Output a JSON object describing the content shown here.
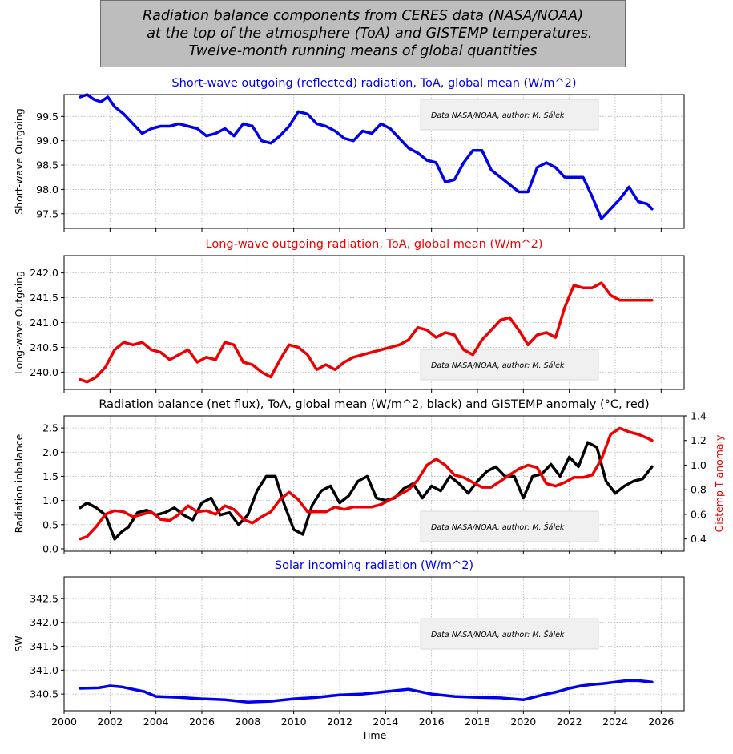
{
  "suptitle": {
    "line1": "Radiation balance components from CERES data (NASA/NOAA)",
    "line2": "   at the top of the atmosphere (ToA) and GISTEMP temperatures.",
    "line3": "Twelve-month running means of global quantities"
  },
  "colors": {
    "blue": "#0000ee",
    "red": "#ee0000",
    "black": "#000000",
    "grid": "#b0b0b0",
    "note_bg": "#f0f0f0"
  },
  "chart_data": [
    {
      "type": "line",
      "title": "Short-wave outgoing (reflected) radiation, ToA, global mean (W/m^2)",
      "ylabel": "Short-wave Outgoing",
      "xlim": [
        2000,
        2027
      ],
      "ylim": [
        97.2,
        99.95
      ],
      "yticks": [
        97.5,
        98.0,
        98.5,
        99.0,
        99.5
      ],
      "ytick_labels": [
        "97.5",
        "98.0",
        "98.5",
        "99.0",
        "99.5"
      ],
      "grid": true,
      "annotation": "Data NASA/NOAA, author: M. Šálek",
      "series": [
        {
          "color": "#0000ee",
          "x": [
            2000.7,
            2001.0,
            2001.3,
            2001.6,
            2001.9,
            2002.2,
            2002.6,
            2003.0,
            2003.4,
            2003.8,
            2004.2,
            2004.6,
            2005.0,
            2005.4,
            2005.8,
            2006.2,
            2006.6,
            2007.0,
            2007.4,
            2007.8,
            2008.2,
            2008.6,
            2009.0,
            2009.4,
            2009.8,
            2010.2,
            2010.6,
            2011.0,
            2011.4,
            2011.8,
            2012.2,
            2012.6,
            2013.0,
            2013.4,
            2013.8,
            2014.2,
            2014.6,
            2015.0,
            2015.4,
            2015.8,
            2016.2,
            2016.6,
            2017.0,
            2017.4,
            2017.8,
            2018.2,
            2018.6,
            2019.0,
            2019.4,
            2019.8,
            2020.2,
            2020.6,
            2021.0,
            2021.4,
            2021.8,
            2022.2,
            2022.6,
            2023.0,
            2023.4,
            2023.8,
            2024.2,
            2024.6,
            2025.0,
            2025.4,
            2025.6
          ],
          "y": [
            99.9,
            99.95,
            99.85,
            99.8,
            99.9,
            99.7,
            99.55,
            99.35,
            99.15,
            99.25,
            99.3,
            99.3,
            99.35,
            99.3,
            99.25,
            99.1,
            99.15,
            99.25,
            99.1,
            99.35,
            99.3,
            99.0,
            98.95,
            99.1,
            99.3,
            99.6,
            99.55,
            99.35,
            99.3,
            99.2,
            99.05,
            99.0,
            99.2,
            99.15,
            99.35,
            99.25,
            99.05,
            98.85,
            98.75,
            98.6,
            98.55,
            98.15,
            98.2,
            98.55,
            98.8,
            98.8,
            98.4,
            98.25,
            98.1,
            97.95,
            97.95,
            98.45,
            98.55,
            98.45,
            98.25,
            98.25,
            98.25,
            97.85,
            97.4,
            97.6,
            97.8,
            98.05,
            97.75,
            97.7,
            97.6
          ]
        }
      ]
    },
    {
      "type": "line",
      "title": "Long-wave outgoing radiation, ToA, global mean  (W/m^2)",
      "ylabel": "Long-wave Outgoing",
      "xlim": [
        2000,
        2027
      ],
      "ylim": [
        239.65,
        242.35
      ],
      "yticks": [
        240.0,
        240.5,
        241.0,
        241.5,
        242.0
      ],
      "ytick_labels": [
        "240.0",
        "240.5",
        "241.0",
        "241.5",
        "242.0"
      ],
      "grid": true,
      "annotation": "Data NASA/NOAA, author: M. Šálek",
      "series": [
        {
          "color": "#ee0000",
          "x": [
            2000.7,
            2001.0,
            2001.4,
            2001.8,
            2002.2,
            2002.6,
            2003.0,
            2003.4,
            2003.8,
            2004.2,
            2004.6,
            2005.0,
            2005.4,
            2005.8,
            2006.2,
            2006.6,
            2007.0,
            2007.4,
            2007.8,
            2008.2,
            2008.6,
            2009.0,
            2009.4,
            2009.8,
            2010.2,
            2010.6,
            2011.0,
            2011.4,
            2011.8,
            2012.2,
            2012.6,
            2013.0,
            2013.4,
            2013.8,
            2014.2,
            2014.6,
            2015.0,
            2015.4,
            2015.8,
            2016.2,
            2016.6,
            2017.0,
            2017.4,
            2017.8,
            2018.2,
            2018.6,
            2019.0,
            2019.4,
            2019.8,
            2020.2,
            2020.6,
            2021.0,
            2021.4,
            2021.8,
            2022.2,
            2022.6,
            2023.0,
            2023.4,
            2023.8,
            2024.2,
            2024.6,
            2025.0,
            2025.4,
            2025.6
          ],
          "y": [
            239.85,
            239.8,
            239.9,
            240.1,
            240.45,
            240.6,
            240.55,
            240.6,
            240.45,
            240.4,
            240.25,
            240.35,
            240.45,
            240.2,
            240.3,
            240.25,
            240.6,
            240.55,
            240.2,
            240.15,
            240.0,
            239.9,
            240.25,
            240.55,
            240.5,
            240.35,
            240.05,
            240.15,
            240.05,
            240.2,
            240.3,
            240.35,
            240.4,
            240.45,
            240.5,
            240.55,
            240.65,
            240.9,
            240.85,
            240.7,
            240.8,
            240.75,
            240.45,
            240.35,
            240.65,
            240.85,
            241.05,
            241.1,
            240.85,
            240.55,
            240.75,
            240.8,
            240.7,
            241.3,
            241.75,
            241.7,
            241.7,
            241.8,
            241.55,
            241.45,
            241.45,
            241.45,
            241.45,
            241.45
          ]
        }
      ]
    },
    {
      "type": "line",
      "title": "Radiation balance (net flux), ToA, global mean (W/m^2, black) and GISTEMP anomaly (°C, red)",
      "ylabel": "Radiation inbalance",
      "ylabel2": "Gistemp T anomaly",
      "xlim": [
        2000,
        2027
      ],
      "ylim": [
        -0.05,
        2.75
      ],
      "ylim2": [
        0.3,
        1.4
      ],
      "yticks": [
        0.0,
        0.5,
        1.0,
        1.5,
        2.0,
        2.5
      ],
      "ytick_labels": [
        "0.0",
        "0.5",
        "1.0",
        "1.5",
        "2.0",
        "2.5"
      ],
      "yticks2": [
        0.4,
        0.6,
        0.8,
        1.0,
        1.2,
        1.4
      ],
      "ytick2_labels": [
        "0.4",
        "0.6",
        "0.8",
        "1.0",
        "1.2",
        "1.4"
      ],
      "grid": true,
      "annotation": "Data NASA/NOAA, author: M. Šálek",
      "series": [
        {
          "color": "#000000",
          "axis": "left",
          "x": [
            2000.7,
            2001.0,
            2001.4,
            2001.8,
            2002.2,
            2002.5,
            2002.8,
            2003.2,
            2003.6,
            2004.0,
            2004.4,
            2004.8,
            2005.2,
            2005.6,
            2006.0,
            2006.4,
            2006.8,
            2007.2,
            2007.6,
            2008.0,
            2008.4,
            2008.8,
            2009.2,
            2009.6,
            2010.0,
            2010.4,
            2010.8,
            2011.2,
            2011.6,
            2012.0,
            2012.4,
            2012.8,
            2013.2,
            2013.6,
            2014.0,
            2014.4,
            2014.8,
            2015.2,
            2015.6,
            2016.0,
            2016.4,
            2016.8,
            2017.2,
            2017.6,
            2018.0,
            2018.4,
            2018.8,
            2019.2,
            2019.6,
            2020.0,
            2020.4,
            2020.8,
            2021.2,
            2021.6,
            2022.0,
            2022.4,
            2022.8,
            2023.2,
            2023.6,
            2024.0,
            2024.4,
            2024.8,
            2025.2,
            2025.6
          ],
          "y": [
            0.85,
            0.95,
            0.85,
            0.7,
            0.2,
            0.35,
            0.45,
            0.75,
            0.8,
            0.7,
            0.75,
            0.85,
            0.7,
            0.6,
            0.95,
            1.05,
            0.7,
            0.75,
            0.5,
            0.7,
            1.2,
            1.5,
            1.5,
            0.9,
            0.4,
            0.3,
            0.9,
            1.2,
            1.3,
            0.95,
            1.1,
            1.4,
            1.5,
            1.05,
            1.0,
            1.05,
            1.25,
            1.35,
            1.05,
            1.3,
            1.2,
            1.5,
            1.35,
            1.15,
            1.4,
            1.6,
            1.7,
            1.5,
            1.5,
            1.05,
            1.5,
            1.55,
            1.75,
            1.5,
            1.9,
            1.7,
            2.2,
            2.1,
            1.4,
            1.15,
            1.3,
            1.4,
            1.45,
            1.7
          ]
        },
        {
          "color": "#ee0000",
          "axis": "right",
          "x": [
            2000.7,
            2001.0,
            2001.4,
            2001.8,
            2002.2,
            2002.6,
            2003.0,
            2003.4,
            2003.8,
            2004.2,
            2004.6,
            2005.0,
            2005.4,
            2005.8,
            2006.2,
            2006.6,
            2007.0,
            2007.4,
            2007.8,
            2008.2,
            2008.6,
            2009.0,
            2009.4,
            2009.8,
            2010.2,
            2010.6,
            2011.0,
            2011.4,
            2011.8,
            2012.2,
            2012.6,
            2013.0,
            2013.4,
            2013.8,
            2014.2,
            2014.6,
            2015.0,
            2015.4,
            2015.8,
            2016.2,
            2016.6,
            2017.0,
            2017.4,
            2017.8,
            2018.2,
            2018.6,
            2019.0,
            2019.4,
            2019.8,
            2020.2,
            2020.6,
            2021.0,
            2021.4,
            2021.8,
            2022.2,
            2022.6,
            2023.0,
            2023.4,
            2023.8,
            2024.2,
            2024.6,
            2025.0,
            2025.4,
            2025.6
          ],
          "y": [
            0.4,
            0.42,
            0.5,
            0.6,
            0.63,
            0.62,
            0.58,
            0.6,
            0.62,
            0.56,
            0.55,
            0.6,
            0.67,
            0.62,
            0.63,
            0.6,
            0.67,
            0.64,
            0.56,
            0.53,
            0.58,
            0.62,
            0.72,
            0.78,
            0.72,
            0.62,
            0.62,
            0.62,
            0.66,
            0.64,
            0.66,
            0.66,
            0.66,
            0.68,
            0.72,
            0.76,
            0.8,
            0.88,
            1.0,
            1.05,
            1.0,
            0.92,
            0.9,
            0.86,
            0.82,
            0.82,
            0.87,
            0.92,
            0.97,
            1.0,
            0.98,
            0.85,
            0.83,
            0.86,
            0.9,
            0.9,
            0.92,
            1.05,
            1.25,
            1.3,
            1.27,
            1.25,
            1.22,
            1.2
          ]
        }
      ]
    },
    {
      "type": "line",
      "title": "Solar incoming radiation (W/m^2)",
      "ylabel": "SW",
      "xlabel": "Time",
      "xlim": [
        2000,
        2027
      ],
      "ylim": [
        340.15,
        342.95
      ],
      "yticks": [
        340.5,
        341.0,
        341.5,
        342.0,
        342.5
      ],
      "ytick_labels": [
        "340.5",
        "341.0",
        "341.5",
        "342.0",
        "342.5"
      ],
      "xticks": [
        2000,
        2002,
        2004,
        2006,
        2008,
        2010,
        2012,
        2014,
        2016,
        2018,
        2020,
        2022,
        2024,
        2026
      ],
      "xtick_labels": [
        "2000",
        "2002",
        "2004",
        "2006",
        "2008",
        "2010",
        "2012",
        "2014",
        "2016",
        "2018",
        "2020",
        "2022",
        "2024",
        "2026"
      ],
      "grid": true,
      "annotation": "Data NASA/NOAA, author: M. Šálek",
      "series": [
        {
          "color": "#0000ee",
          "x": [
            2000.7,
            2001.5,
            2002.0,
            2002.5,
            2003.0,
            2003.5,
            2004.0,
            2005.0,
            2006.0,
            2007.0,
            2008.0,
            2009.0,
            2010.0,
            2011.0,
            2012.0,
            2013.0,
            2014.0,
            2015.0,
            2016.0,
            2017.0,
            2018.0,
            2019.0,
            2020.0,
            2021.0,
            2021.5,
            2022.0,
            2022.5,
            2023.0,
            2023.5,
            2024.0,
            2024.5,
            2025.0,
            2025.6
          ],
          "y": [
            340.62,
            340.63,
            340.67,
            340.65,
            340.6,
            340.55,
            340.45,
            340.43,
            340.4,
            340.38,
            340.33,
            340.35,
            340.4,
            340.43,
            340.48,
            340.5,
            340.55,
            340.6,
            340.5,
            340.45,
            340.43,
            340.42,
            340.38,
            340.5,
            340.55,
            340.62,
            340.67,
            340.7,
            340.72,
            340.75,
            340.78,
            340.78,
            340.75
          ]
        }
      ]
    }
  ]
}
